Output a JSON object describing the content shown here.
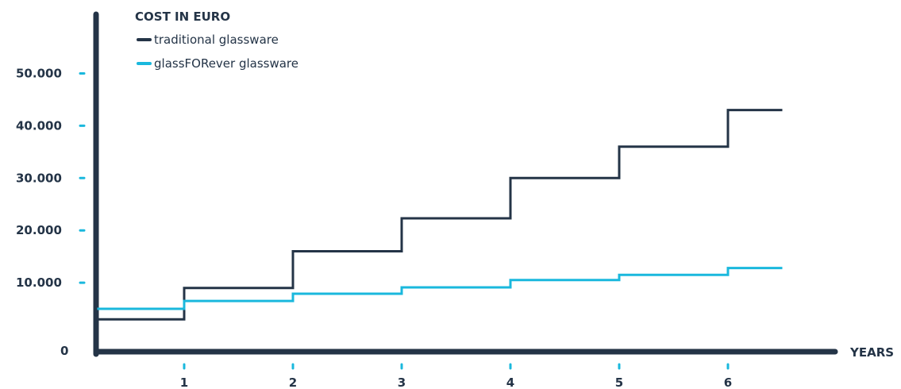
{
  "chart_data": {
    "type": "line",
    "step": true,
    "title": "COST IN EURO",
    "xlabel": "YEARS",
    "ylabel": "",
    "x_ticks": [
      "1",
      "2",
      "3",
      "4",
      "5",
      "6"
    ],
    "y_ticks": [
      "0",
      "10.000",
      "20.000",
      "30.000",
      "40.000",
      "50.000"
    ],
    "x_range": [
      0.2,
      6.5
    ],
    "ylim": [
      0,
      50000
    ],
    "legend_position": "top-left",
    "grid": false,
    "series": [
      {
        "name": "traditional glassware",
        "color": "#243447",
        "steps": [
          {
            "x": 0.2,
            "y": 3000
          },
          {
            "x": 1,
            "y": 9000
          },
          {
            "x": 2,
            "y": 16000
          },
          {
            "x": 3,
            "y": 22300
          },
          {
            "x": 4,
            "y": 30000
          },
          {
            "x": 5,
            "y": 36000
          },
          {
            "x": 6,
            "y": 43000
          }
        ],
        "x_end": 6.5
      },
      {
        "name": "glassFORever glassware",
        "color": "#1ab8dd",
        "steps": [
          {
            "x": 0.2,
            "y": 5000
          },
          {
            "x": 1,
            "y": 6500
          },
          {
            "x": 2,
            "y": 7900
          },
          {
            "x": 3,
            "y": 9100
          },
          {
            "x": 4,
            "y": 10500
          },
          {
            "x": 5,
            "y": 11500
          },
          {
            "x": 6,
            "y": 12800
          }
        ],
        "x_end": 6.5
      }
    ]
  }
}
